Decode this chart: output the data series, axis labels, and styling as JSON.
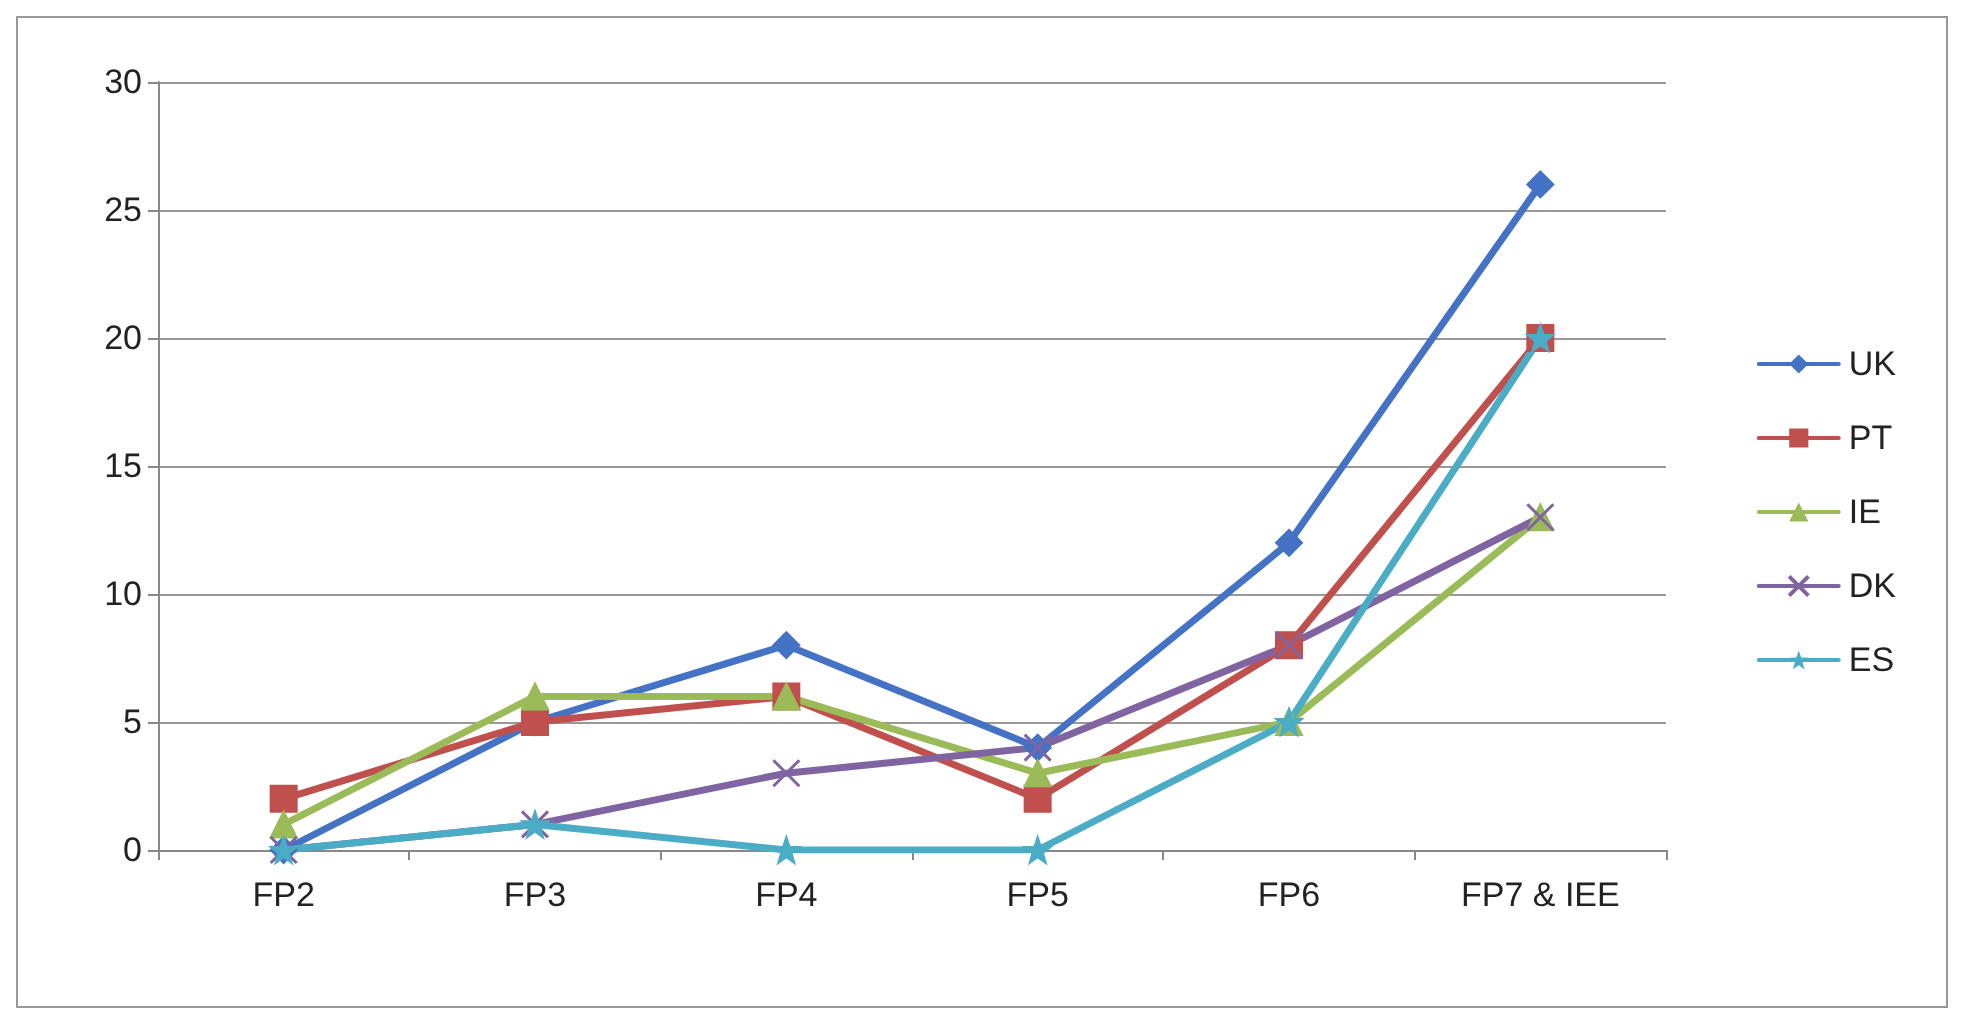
{
  "chart_data": {
    "type": "line",
    "categories": [
      "FP2",
      "FP3",
      "FP4",
      "FP5",
      "FP6",
      "FP7 & IEE"
    ],
    "series": [
      {
        "name": "UK",
        "color": "#4472c4",
        "marker": "diamond",
        "values": [
          0,
          5,
          8,
          4,
          12,
          26
        ]
      },
      {
        "name": "PT",
        "color": "#c0504d",
        "marker": "square",
        "values": [
          2,
          5,
          6,
          2,
          8,
          20
        ]
      },
      {
        "name": "IE",
        "color": "#9bbb59",
        "marker": "triangle",
        "values": [
          1,
          6,
          6,
          3,
          5,
          13
        ]
      },
      {
        "name": "DK",
        "color": "#8064a2",
        "marker": "cross",
        "values": [
          0,
          1,
          3,
          4,
          8,
          13
        ]
      },
      {
        "name": "ES",
        "color": "#4bacc6",
        "marker": "star",
        "values": [
          0,
          1,
          0,
          0,
          5,
          20
        ]
      }
    ],
    "ylim": [
      0,
      30
    ],
    "yticks": [
      0,
      5,
      10,
      15,
      20,
      25,
      30
    ],
    "grid": "y",
    "legend": "right",
    "line_style": "solid"
  }
}
